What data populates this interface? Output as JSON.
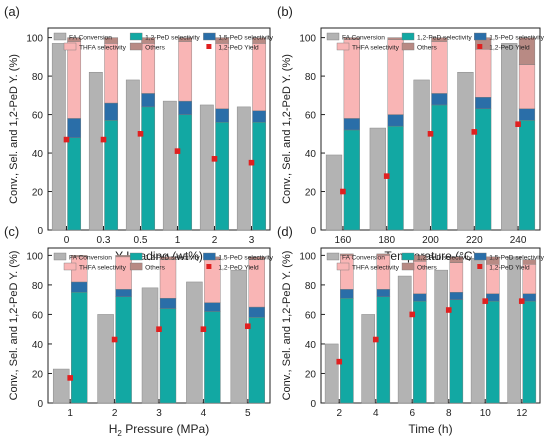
{
  "colors": {
    "fa_conversion": "#b3b3b3",
    "pd12_selectivity": "#12a8a3",
    "pd15_selectivity": "#2a6ea8",
    "thfa_selectivity": "#f9b5b5",
    "others": "#b88a84",
    "yield_marker": "#e02020",
    "axis": "#222222"
  },
  "legend_labels": {
    "fa_conversion": "FA Conversion",
    "pd12_selectivity": "1,2-PeD selectivity",
    "pd15_selectivity": "1,5-PeD selectivity",
    "thfa_selectivity": "THFA selectivity",
    "others": "Others",
    "yield": "1,2-PeD Yield"
  },
  "chart_data": [
    {
      "type": "bar",
      "panel_label": "(a)",
      "xlabel": "Y Loading (wt%)",
      "ylabel": "Conv., Sel. and 1,2-PeD Y. (%)",
      "ylim": [
        0,
        100
      ],
      "yticks": [
        0,
        20,
        40,
        60,
        80,
        100
      ],
      "categories": [
        "0",
        "0.3",
        "0.5",
        "1",
        "2",
        "3"
      ],
      "series": [
        {
          "name": "FA Conversion",
          "values": [
            97,
            82,
            78,
            67,
            65,
            64
          ]
        },
        {
          "name": "1,2-PeD selectivity",
          "values": [
            48,
            57,
            64,
            60,
            56,
            56
          ]
        },
        {
          "name": "1,5-PeD selectivity",
          "values": [
            10,
            9,
            7,
            7,
            7,
            6
          ]
        },
        {
          "name": "THFA selectivity",
          "values": [
            40,
            31,
            26,
            31,
            34,
            35
          ]
        },
        {
          "name": "Others",
          "values": [
            2,
            3,
            3,
            2,
            3,
            3
          ]
        },
        {
          "name": "1,2-PeD Yield",
          "values": [
            47,
            47,
            50,
            41,
            37,
            35
          ]
        }
      ]
    },
    {
      "type": "bar",
      "panel_label": "(b)",
      "xlabel": "Temperature (°C)",
      "ylabel": "Conv., Sel. and 1,2-PeD Y. (%)",
      "ylim": [
        0,
        100
      ],
      "yticks": [
        0,
        20,
        40,
        60,
        80,
        100
      ],
      "categories": [
        "160",
        "180",
        "200",
        "220",
        "240"
      ],
      "series": [
        {
          "name": "FA Conversion",
          "values": [
            39,
            53,
            78,
            82,
            97
          ]
        },
        {
          "name": "1,2-PeD selectivity",
          "values": [
            52,
            54,
            65,
            63,
            57
          ]
        },
        {
          "name": "1,5-PeD selectivity",
          "values": [
            6,
            6,
            6,
            6,
            6
          ]
        },
        {
          "name": "THFA selectivity",
          "values": [
            41,
            39,
            27,
            25,
            23
          ]
        },
        {
          "name": "Others",
          "values": [
            1,
            1,
            2,
            6,
            14
          ]
        },
        {
          "name": "1,2-PeD Yield",
          "values": [
            20,
            28,
            50,
            51,
            55
          ]
        }
      ]
    },
    {
      "type": "bar",
      "panel_label": "(c)",
      "xlabel_main": "H",
      "xlabel_sub": "2",
      "xlabel_rest": " Pressure (MPa)",
      "ylabel": "Conv., Sel. and 1,2-PeD Y. (%)",
      "ylim": [
        0,
        100
      ],
      "yticks": [
        0,
        20,
        40,
        60,
        80,
        100
      ],
      "categories": [
        "1",
        "2",
        "3",
        "4",
        "5"
      ],
      "series": [
        {
          "name": "FA Conversion",
          "values": [
            23,
            60,
            78,
            82,
            90
          ]
        },
        {
          "name": "1,2-PeD selectivity",
          "values": [
            75,
            72,
            64,
            62,
            58
          ]
        },
        {
          "name": "1,5-PeD selectivity",
          "values": [
            7,
            5,
            7,
            6,
            7
          ]
        },
        {
          "name": "THFA selectivity",
          "values": [
            17,
            22,
            26,
            29,
            32
          ]
        },
        {
          "name": "Others",
          "values": [
            1,
            1,
            2,
            2,
            2
          ]
        },
        {
          "name": "1,2-PeD Yield",
          "values": [
            17,
            43,
            50,
            50,
            52
          ]
        }
      ]
    },
    {
      "type": "bar",
      "panel_label": "(d)",
      "xlabel": "Time (h)",
      "ylabel": "Conv., Sel. and 1,2-PeD Y. (%)",
      "ylim": [
        0,
        100
      ],
      "yticks": [
        0,
        20,
        40,
        60,
        80,
        100
      ],
      "categories": [
        "2",
        "4",
        "6",
        "8",
        "10",
        "12"
      ],
      "series": [
        {
          "name": "FA Conversion",
          "values": [
            40,
            60,
            86,
            90,
            98,
            99
          ]
        },
        {
          "name": "1,2-PeD selectivity",
          "values": [
            71,
            72,
            69,
            70,
            69,
            69
          ]
        },
        {
          "name": "1,5-PeD selectivity",
          "values": [
            6,
            5,
            5,
            5,
            5,
            5
          ]
        },
        {
          "name": "THFA selectivity",
          "values": [
            23,
            23,
            22,
            20,
            20,
            20
          ]
        },
        {
          "name": "Others",
          "values": [
            1,
            1,
            4,
            4,
            5,
            3
          ]
        },
        {
          "name": "1,2-PeD Yield",
          "values": [
            28,
            43,
            60,
            63,
            69,
            69
          ]
        }
      ]
    }
  ]
}
